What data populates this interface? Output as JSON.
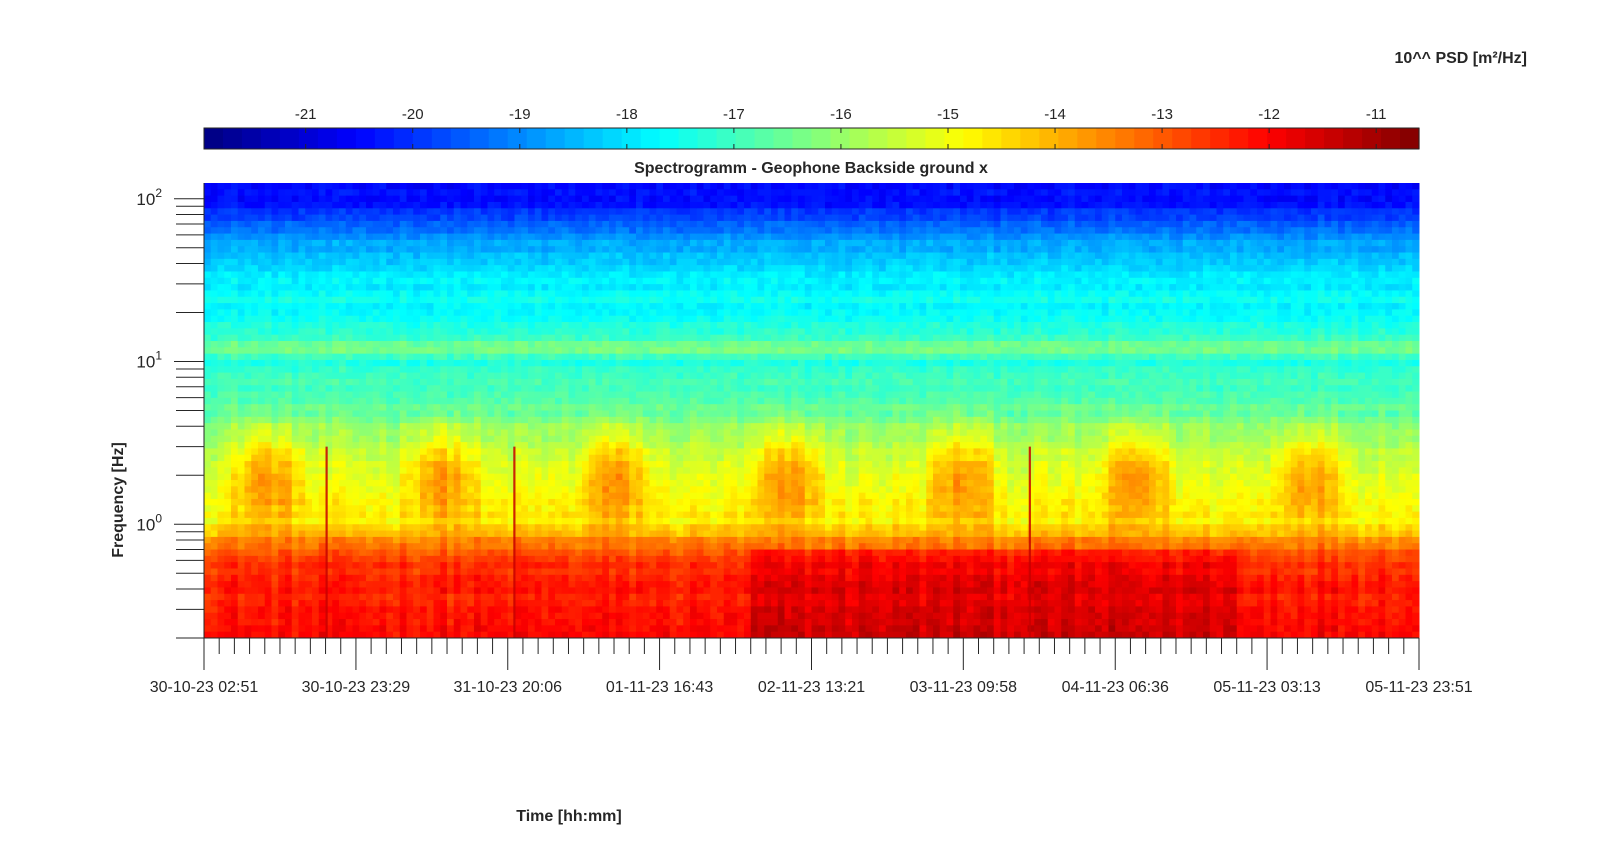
{
  "chart_data": {
    "type": "heatmap",
    "title": "Spectrogramm - Geophone Backside ground x",
    "xlabel": "Time [hh:mm]",
    "ylabel": "Frequency [Hz]",
    "y_scale": "log",
    "ylim": [
      0.2,
      125
    ],
    "x_tick_labels": [
      "30-10-23 02:51",
      "30-10-23 23:29",
      "31-10-23 20:06",
      "01-11-23 16:43",
      "02-11-23 13:21",
      "03-11-23 09:58",
      "04-11-23 06:36",
      "05-11-23 03:13",
      "05-11-23 23:51"
    ],
    "y_ticks": [
      {
        "base": "10",
        "exp": "0",
        "value": 1
      },
      {
        "base": "10",
        "exp": "1",
        "value": 10
      },
      {
        "base": "10",
        "exp": "2",
        "value": 100
      }
    ],
    "colorbar": {
      "title": "10^^ PSD [m²/Hz]",
      "min": -21.95,
      "max": -10.6,
      "ticks": [
        "-21",
        "-20",
        "-19",
        "-18",
        "-17",
        "-16",
        "-15",
        "-14",
        "-13",
        "-12",
        "-11"
      ],
      "colormap": "jet"
    },
    "grid": false,
    "psd_profile": {
      "frequency_hz": [
        0.2,
        0.5,
        0.65,
        0.8,
        1.0,
        1.5,
        3.0,
        5.0,
        8.0,
        10,
        12,
        15,
        20,
        30,
        40,
        60,
        90,
        125
      ],
      "log10_psd": [
        -11.8,
        -12.2,
        -12.6,
        -13.6,
        -14.6,
        -15.0,
        -15.6,
        -16.6,
        -17.1,
        -17.3,
        -16.2,
        -17.4,
        -17.6,
        -17.8,
        -18.2,
        -18.9,
        -20.2,
        -20.6
      ]
    },
    "transient_events": [
      "30-10-23 19:30",
      "31-10-23 21:00",
      "03-11-23 19:00"
    ]
  }
}
